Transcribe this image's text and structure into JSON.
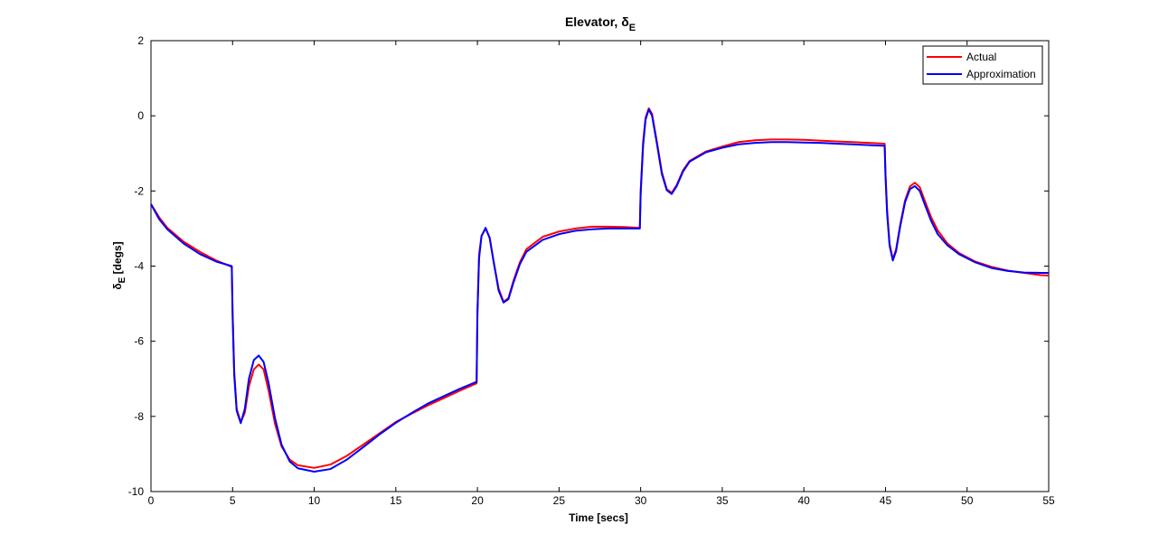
{
  "chart_data": {
    "type": "line",
    "title": "Elevator, δ",
    "title_sub": "E",
    "xlabel": "Time [secs]",
    "ylabel": "δ",
    "ylabel_sub": "E",
    "ylabel_suffix": " [degs]",
    "xlim": [
      0,
      55
    ],
    "ylim": [
      -10,
      2
    ],
    "xticks": [
      "0",
      "5",
      "10",
      "15",
      "20",
      "25",
      "30",
      "35",
      "40",
      "45",
      "50",
      "55"
    ],
    "yticks": [
      "-10",
      "-8",
      "-6",
      "-4",
      "-2",
      "0",
      "2"
    ],
    "grid": false,
    "legend_position": "top-right",
    "series": [
      {
        "name": "Actual",
        "color": "#ff0000",
        "points": [
          [
            0,
            -2.35
          ],
          [
            0.5,
            -2.7
          ],
          [
            1,
            -2.98
          ],
          [
            2,
            -3.35
          ],
          [
            3,
            -3.62
          ],
          [
            4,
            -3.85
          ],
          [
            4.95,
            -4.02
          ],
          [
            5.0,
            -5.2
          ],
          [
            5.1,
            -6.8
          ],
          [
            5.25,
            -7.8
          ],
          [
            5.5,
            -8.15
          ],
          [
            5.75,
            -7.9
          ],
          [
            6.0,
            -7.2
          ],
          [
            6.3,
            -6.75
          ],
          [
            6.6,
            -6.62
          ],
          [
            6.9,
            -6.75
          ],
          [
            7.2,
            -7.3
          ],
          [
            7.6,
            -8.2
          ],
          [
            8,
            -8.8
          ],
          [
            8.5,
            -9.15
          ],
          [
            9,
            -9.3
          ],
          [
            10,
            -9.37
          ],
          [
            11,
            -9.28
          ],
          [
            12,
            -9.05
          ],
          [
            13,
            -8.75
          ],
          [
            14,
            -8.45
          ],
          [
            15,
            -8.15
          ],
          [
            16,
            -7.92
          ],
          [
            17,
            -7.7
          ],
          [
            18,
            -7.5
          ],
          [
            19,
            -7.3
          ],
          [
            19.95,
            -7.12
          ],
          [
            20.0,
            -5.2
          ],
          [
            20.1,
            -3.7
          ],
          [
            20.25,
            -3.2
          ],
          [
            20.5,
            -3.0
          ],
          [
            20.75,
            -3.25
          ],
          [
            21.0,
            -3.9
          ],
          [
            21.3,
            -4.6
          ],
          [
            21.6,
            -4.95
          ],
          [
            21.9,
            -4.85
          ],
          [
            22.2,
            -4.4
          ],
          [
            22.6,
            -3.9
          ],
          [
            23,
            -3.55
          ],
          [
            24,
            -3.22
          ],
          [
            25,
            -3.08
          ],
          [
            26,
            -3.0
          ],
          [
            27,
            -2.95
          ],
          [
            28,
            -2.95
          ],
          [
            29,
            -2.96
          ],
          [
            29.95,
            -2.98
          ],
          [
            30.0,
            -2.0
          ],
          [
            30.15,
            -0.7
          ],
          [
            30.3,
            -0.05
          ],
          [
            30.5,
            0.2
          ],
          [
            30.7,
            0.05
          ],
          [
            31.0,
            -0.7
          ],
          [
            31.3,
            -1.5
          ],
          [
            31.6,
            -1.95
          ],
          [
            31.9,
            -2.05
          ],
          [
            32.2,
            -1.85
          ],
          [
            32.6,
            -1.45
          ],
          [
            33,
            -1.2
          ],
          [
            34,
            -0.95
          ],
          [
            35,
            -0.82
          ],
          [
            36,
            -0.7
          ],
          [
            37,
            -0.65
          ],
          [
            38,
            -0.63
          ],
          [
            39,
            -0.63
          ],
          [
            40,
            -0.64
          ],
          [
            41,
            -0.66
          ],
          [
            42,
            -0.68
          ],
          [
            43,
            -0.7
          ],
          [
            44,
            -0.72
          ],
          [
            44.95,
            -0.74
          ],
          [
            45.0,
            -1.5
          ],
          [
            45.1,
            -2.5
          ],
          [
            45.25,
            -3.4
          ],
          [
            45.45,
            -3.82
          ],
          [
            45.65,
            -3.55
          ],
          [
            45.9,
            -2.9
          ],
          [
            46.2,
            -2.25
          ],
          [
            46.5,
            -1.88
          ],
          [
            46.8,
            -1.78
          ],
          [
            47.1,
            -1.9
          ],
          [
            47.4,
            -2.25
          ],
          [
            47.8,
            -2.7
          ],
          [
            48.2,
            -3.05
          ],
          [
            48.8,
            -3.4
          ],
          [
            49.5,
            -3.65
          ],
          [
            50.5,
            -3.88
          ],
          [
            51.5,
            -4.02
          ],
          [
            52.5,
            -4.12
          ],
          [
            53.5,
            -4.18
          ],
          [
            54.5,
            -4.24
          ],
          [
            55,
            -4.25
          ]
        ]
      },
      {
        "name": "Approximation",
        "color": "#0000ff",
        "points": [
          [
            0,
            -2.35
          ],
          [
            0.5,
            -2.75
          ],
          [
            1,
            -3.02
          ],
          [
            2,
            -3.4
          ],
          [
            3,
            -3.68
          ],
          [
            4,
            -3.88
          ],
          [
            4.95,
            -4.0
          ],
          [
            5.0,
            -5.3
          ],
          [
            5.1,
            -6.9
          ],
          [
            5.25,
            -7.85
          ],
          [
            5.5,
            -8.18
          ],
          [
            5.75,
            -7.8
          ],
          [
            6.0,
            -7.0
          ],
          [
            6.3,
            -6.5
          ],
          [
            6.6,
            -6.38
          ],
          [
            6.9,
            -6.55
          ],
          [
            7.2,
            -7.1
          ],
          [
            7.6,
            -8.05
          ],
          [
            8,
            -8.75
          ],
          [
            8.5,
            -9.2
          ],
          [
            9,
            -9.38
          ],
          [
            10,
            -9.47
          ],
          [
            11,
            -9.4
          ],
          [
            12,
            -9.15
          ],
          [
            13,
            -8.82
          ],
          [
            14,
            -8.48
          ],
          [
            15,
            -8.17
          ],
          [
            16,
            -7.9
          ],
          [
            17,
            -7.65
          ],
          [
            18,
            -7.45
          ],
          [
            19,
            -7.25
          ],
          [
            19.95,
            -7.08
          ],
          [
            20.0,
            -5.3
          ],
          [
            20.1,
            -3.8
          ],
          [
            20.25,
            -3.2
          ],
          [
            20.5,
            -2.98
          ],
          [
            20.75,
            -3.25
          ],
          [
            21.0,
            -3.9
          ],
          [
            21.3,
            -4.65
          ],
          [
            21.6,
            -4.97
          ],
          [
            21.9,
            -4.88
          ],
          [
            22.2,
            -4.45
          ],
          [
            22.6,
            -3.95
          ],
          [
            23,
            -3.62
          ],
          [
            24,
            -3.3
          ],
          [
            25,
            -3.15
          ],
          [
            26,
            -3.06
          ],
          [
            27,
            -3.02
          ],
          [
            28,
            -3.0
          ],
          [
            29,
            -3.0
          ],
          [
            29.95,
            -3.0
          ],
          [
            30.0,
            -2.1
          ],
          [
            30.15,
            -0.8
          ],
          [
            30.3,
            -0.1
          ],
          [
            30.5,
            0.17
          ],
          [
            30.7,
            0.0
          ],
          [
            31.0,
            -0.75
          ],
          [
            31.3,
            -1.55
          ],
          [
            31.6,
            -1.98
          ],
          [
            31.9,
            -2.08
          ],
          [
            32.2,
            -1.88
          ],
          [
            32.6,
            -1.48
          ],
          [
            33,
            -1.22
          ],
          [
            34,
            -0.97
          ],
          [
            35,
            -0.85
          ],
          [
            36,
            -0.76
          ],
          [
            37,
            -0.72
          ],
          [
            38,
            -0.7
          ],
          [
            39,
            -0.7
          ],
          [
            40,
            -0.71
          ],
          [
            41,
            -0.72
          ],
          [
            42,
            -0.74
          ],
          [
            43,
            -0.76
          ],
          [
            44,
            -0.78
          ],
          [
            44.95,
            -0.8
          ],
          [
            45.0,
            -1.6
          ],
          [
            45.1,
            -2.6
          ],
          [
            45.25,
            -3.45
          ],
          [
            45.45,
            -3.85
          ],
          [
            45.65,
            -3.6
          ],
          [
            45.9,
            -2.95
          ],
          [
            46.2,
            -2.3
          ],
          [
            46.5,
            -1.95
          ],
          [
            46.8,
            -1.87
          ],
          [
            47.1,
            -2.0
          ],
          [
            47.4,
            -2.35
          ],
          [
            47.8,
            -2.8
          ],
          [
            48.2,
            -3.15
          ],
          [
            48.8,
            -3.45
          ],
          [
            49.5,
            -3.68
          ],
          [
            50.5,
            -3.9
          ],
          [
            51.5,
            -4.05
          ],
          [
            52.5,
            -4.13
          ],
          [
            53.5,
            -4.17
          ],
          [
            54.5,
            -4.18
          ],
          [
            55,
            -4.18
          ]
        ]
      }
    ]
  }
}
